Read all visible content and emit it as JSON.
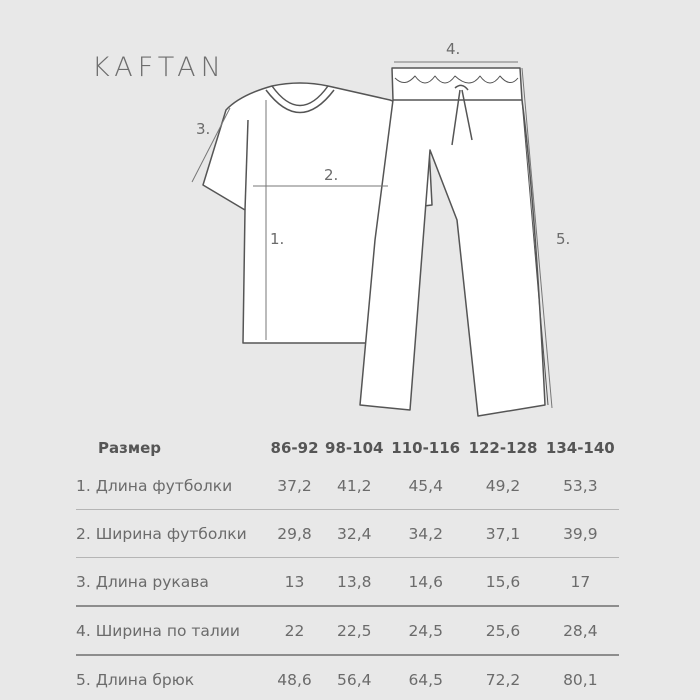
{
  "brand": "KAFTAN",
  "diagram": {
    "labels": [
      "1.",
      "2.",
      "3.",
      "4.",
      "5."
    ]
  },
  "table": {
    "header": {
      "label": "Размер",
      "sizes": [
        "86-92",
        "98-104",
        "110-116",
        "122-128",
        "134-140"
      ]
    },
    "rows": [
      {
        "label": "1.  Длина футболки",
        "values": [
          "37,2",
          "41,2",
          "45,4",
          "49,2",
          "53,3"
        ]
      },
      {
        "label": "2. Ширина футболки",
        "values": [
          "29,8",
          "32,4",
          "34,2",
          "37,1",
          "39,9"
        ]
      },
      {
        "label": "3.  Длина рукава",
        "values": [
          "13",
          "13,8",
          "14,6",
          "15,6",
          "17"
        ]
      },
      {
        "label": "4. Ширина по талии",
        "values": [
          "22",
          "22,5",
          "24,5",
          "25,6",
          "28,4"
        ]
      },
      {
        "label": "5. Длина брюк",
        "values": [
          "48,6",
          "56,4",
          "64,5",
          "72,2",
          "80,1"
        ]
      }
    ]
  },
  "colors": {
    "background": "#e8e8e8",
    "garment": "#ffffff",
    "outline": "#555555",
    "text": "#6b6b6b"
  }
}
